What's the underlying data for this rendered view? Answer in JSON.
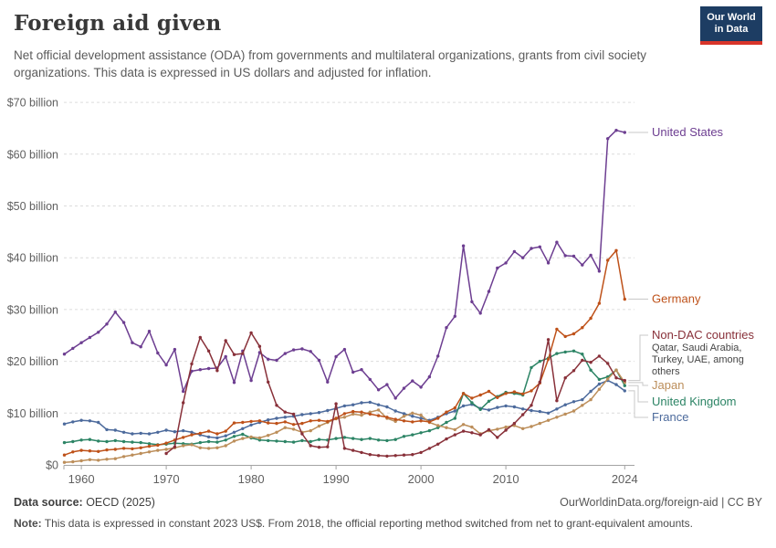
{
  "header": {
    "title": "Foreign aid given",
    "subtitle": "Net official development assistance (ODA) from governments and multilateral organizations, grants from civil society organizations. This data is expressed in US dollars and adjusted for inflation.",
    "logo": {
      "line1": "Our World",
      "line2": "in Data",
      "bg_color": "#1d3d63",
      "bar_color": "#d8352a"
    }
  },
  "chart_data": {
    "type": "line",
    "title": "Foreign aid given",
    "xlabel": "",
    "ylabel": "",
    "ylim": [
      0,
      70
    ],
    "y_ticks": [
      0,
      10,
      20,
      30,
      40,
      50,
      60,
      70
    ],
    "y_tick_unit": "billion",
    "y_tick_prefix": "$",
    "x_ticks": [
      1960,
      1970,
      1980,
      1990,
      2000,
      2010,
      2024
    ],
    "x_range": [
      1958,
      2024
    ],
    "grid": "horizontal-dashed",
    "legend_position": "right-edge-labels",
    "years": [
      1958,
      1959,
      1960,
      1961,
      1962,
      1963,
      1964,
      1965,
      1966,
      1967,
      1968,
      1969,
      1970,
      1971,
      1972,
      1973,
      1974,
      1975,
      1976,
      1977,
      1978,
      1979,
      1980,
      1981,
      1982,
      1983,
      1984,
      1985,
      1986,
      1987,
      1988,
      1989,
      1990,
      1991,
      1992,
      1993,
      1994,
      1995,
      1996,
      1997,
      1998,
      1999,
      2000,
      2001,
      2002,
      2003,
      2004,
      2005,
      2006,
      2007,
      2008,
      2009,
      2010,
      2011,
      2012,
      2013,
      2014,
      2015,
      2016,
      2017,
      2018,
      2019,
      2020,
      2021,
      2022,
      2023,
      2024
    ],
    "unit": "US$ billion (constant 2023 US$)",
    "series": [
      {
        "name": "United States",
        "color": "#6D3E91",
        "values": [
          21.4,
          22.5,
          23.6,
          24.6,
          25.6,
          27.2,
          29.5,
          27.5,
          23.6,
          22.8,
          25.8,
          21.6,
          19.3,
          22.3,
          14.2,
          18.1,
          18.4,
          18.6,
          18.7,
          20.9,
          15.9,
          22,
          16.3,
          21.7,
          20.4,
          20.2,
          21.5,
          22.2,
          22.4,
          21.9,
          20.2,
          16,
          20.9,
          22.3,
          17.9,
          18.4,
          16.5,
          14.5,
          15.5,
          12.9,
          14.8,
          16.2,
          15,
          17,
          21,
          26.5,
          28.7,
          42.3,
          31.5,
          29.3,
          33.5,
          38,
          39,
          41.2,
          40,
          41.8,
          42.1,
          39,
          43,
          40.4,
          40.3,
          38.6,
          40.5,
          37.4,
          63,
          64.6,
          64.2
        ]
      },
      {
        "name": "Germany",
        "color": "#BE5119",
        "values": [
          1.9,
          2.5,
          2.8,
          2.7,
          2.6,
          2.9,
          3,
          3.2,
          3.1,
          3.3,
          3.6,
          3.8,
          4.2,
          4.8,
          5.3,
          5.8,
          6.1,
          6.5,
          6,
          6.5,
          8.1,
          8.2,
          8.4,
          8.5,
          8.1,
          8,
          8.3,
          7.8,
          8,
          8.5,
          8.6,
          8.4,
          9,
          9.9,
          10.3,
          10.2,
          9.8,
          9.5,
          9.2,
          8.8,
          8.5,
          8.3,
          8.5,
          8.3,
          9,
          10.2,
          11,
          13.8,
          12.9,
          13.5,
          14.2,
          13,
          13.8,
          14.1,
          13.7,
          14.3,
          15.8,
          20.4,
          26.2,
          24.8,
          25.3,
          26.5,
          28.3,
          31.2,
          39.5,
          41.4,
          32
        ]
      },
      {
        "name": "Non-DAC countries",
        "color": "#883039",
        "sublabel": [
          "Qatar, Saudi Arabia,",
          "Turkey, UAE, among",
          "others"
        ],
        "values": [
          null,
          null,
          null,
          null,
          null,
          null,
          null,
          null,
          null,
          null,
          null,
          null,
          2.2,
          3.5,
          12,
          19.5,
          24.6,
          22,
          18.2,
          24,
          21.3,
          21.5,
          25.5,
          22.9,
          16,
          11.5,
          10.2,
          9.8,
          6,
          3.7,
          3.4,
          3.5,
          11.8,
          3.2,
          2.8,
          2.4,
          2,
          1.8,
          1.7,
          1.8,
          1.9,
          2,
          2.4,
          3.2,
          4,
          5,
          5.8,
          6.5,
          6.2,
          5.8,
          6.8,
          5.3,
          6.7,
          8,
          9.7,
          11.5,
          16,
          24.2,
          12.4,
          16.8,
          18.2,
          20.2,
          19.8,
          21,
          19.6,
          16.8,
          16.3
        ]
      },
      {
        "name": "Japan",
        "color": "#BC8E5A",
        "values": [
          0.5,
          0.6,
          0.8,
          1,
          0.9,
          1.1,
          1.2,
          1.6,
          1.9,
          2.2,
          2.5,
          2.8,
          3,
          3.3,
          3.7,
          3.9,
          3.3,
          3.2,
          3.3,
          3.7,
          4.6,
          5.1,
          5.4,
          5.2,
          5.7,
          6.3,
          7.2,
          6.9,
          6.3,
          6.6,
          7.5,
          8.2,
          8.9,
          9.2,
          9.8,
          9.6,
          10.2,
          10.6,
          9,
          8.4,
          9.4,
          10,
          9.6,
          8.2,
          7.6,
          7.2,
          6.8,
          7.8,
          7.3,
          6,
          6.6,
          6.9,
          7.3,
          7.6,
          7,
          7.4,
          8,
          8.6,
          9.2,
          9.8,
          10.4,
          11.5,
          12.6,
          14.6,
          16.6,
          18.3,
          15.9
        ]
      },
      {
        "name": "United Kingdom",
        "color": "#2C8465",
        "values": [
          4.3,
          4.5,
          4.8,
          4.9,
          4.6,
          4.5,
          4.7,
          4.5,
          4.4,
          4.3,
          4.1,
          3.9,
          4,
          4.2,
          4.1,
          4,
          4.3,
          4.5,
          4.4,
          4.8,
          5.5,
          5.9,
          5.2,
          4.8,
          4.7,
          4.6,
          4.5,
          4.4,
          4.7,
          4.5,
          4.9,
          4.8,
          5.1,
          5.3,
          5.1,
          4.9,
          5.1,
          4.8,
          4.7,
          4.9,
          5.5,
          5.8,
          6.2,
          6.6,
          7.2,
          8.2,
          9,
          13.8,
          12,
          10.7,
          12.3,
          13.2,
          14,
          13.8,
          13.5,
          18.8,
          20,
          20.6,
          21.5,
          21.8,
          22,
          21.4,
          18.3,
          16.5,
          17,
          18.3,
          15.3
        ]
      },
      {
        "name": "France",
        "color": "#4C6A9C",
        "values": [
          7.9,
          8.3,
          8.6,
          8.5,
          8.2,
          6.8,
          6.7,
          6.3,
          6,
          6.1,
          6,
          6.3,
          6.7,
          6.4,
          6.6,
          6.3,
          5.8,
          5.4,
          5.2,
          5.6,
          6.3,
          7,
          7.7,
          8.2,
          8.7,
          9,
          9.2,
          9.4,
          9.7,
          9.9,
          10.1,
          10.5,
          10.9,
          11.4,
          11.6,
          12,
          12.1,
          11.6,
          11.2,
          10.4,
          9.9,
          9.4,
          9,
          8.6,
          9.2,
          9.9,
          10.4,
          11.4,
          11.7,
          10.9,
          10.6,
          11.1,
          11.4,
          11.2,
          10.8,
          10.5,
          10.3,
          10,
          10.8,
          11.6,
          12.2,
          12.6,
          14.2,
          15.6,
          16.3,
          15.5,
          14.3
        ]
      }
    ]
  },
  "footer": {
    "source_label": "Data source:",
    "source_value": " OECD (2025)",
    "link": "OurWorldinData.org/foreign-aid | CC BY",
    "note_label": "Note:",
    "note_value": " This data is expressed in constant 2023 US$. From 2018, the official reporting method switched from net to grant-equivalent amounts."
  }
}
